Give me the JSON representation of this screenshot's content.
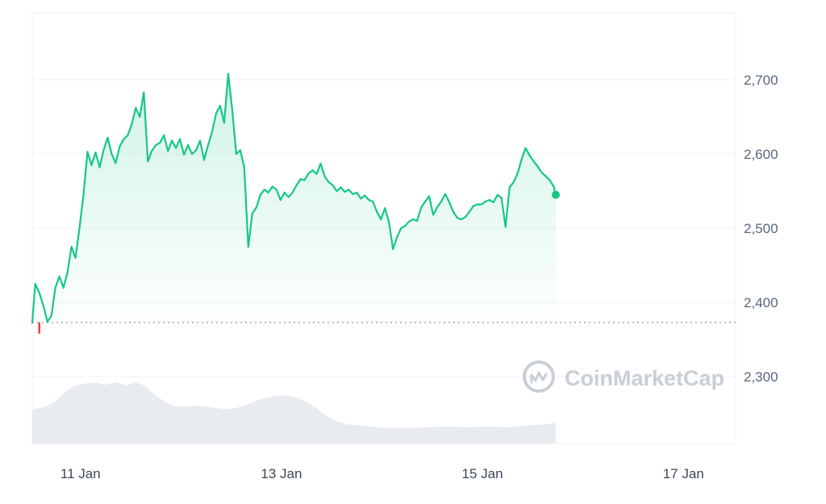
{
  "chart_data": {
    "type": "area",
    "title": "",
    "xlabel": "",
    "ylabel": "",
    "ylim": [
      2210,
      2790
    ],
    "y_ticks": [
      "2,700",
      "2,600",
      "2,500",
      "2,400",
      "2,300"
    ],
    "y_tick_values": [
      2700,
      2600,
      2500,
      2400,
      2300
    ],
    "x_ticks": [
      "11 Jan",
      "13 Jan",
      "15 Jan",
      "17 Jan"
    ],
    "x_tick_values": [
      10.75,
      12.75,
      14.75,
      16.75
    ],
    "x_range": [
      10.27,
      17.27
    ],
    "grid": true,
    "open_price": 2373,
    "colors": {
      "up": "#16c784",
      "down": "#ea3943",
      "fill": "#16c784",
      "volume": "#e8ecf1",
      "grid": "#eff2f5",
      "reference": "#808a9d"
    },
    "series": [
      {
        "values": [
          [
            10.27,
            2373
          ],
          [
            10.3,
            2425
          ],
          [
            10.34,
            2413
          ],
          [
            10.38,
            2396
          ],
          [
            10.42,
            2374
          ],
          [
            10.46,
            2382
          ],
          [
            10.5,
            2420
          ],
          [
            10.54,
            2435
          ],
          [
            10.58,
            2420
          ],
          [
            10.62,
            2440
          ],
          [
            10.66,
            2475
          ],
          [
            10.7,
            2460
          ],
          [
            10.74,
            2500
          ],
          [
            10.78,
            2545
          ],
          [
            10.82,
            2603
          ],
          [
            10.86,
            2585
          ],
          [
            10.9,
            2602
          ],
          [
            10.94,
            2582
          ],
          [
            10.98,
            2605
          ],
          [
            11.02,
            2622
          ],
          [
            11.06,
            2600
          ],
          [
            11.1,
            2588
          ],
          [
            11.14,
            2610
          ],
          [
            11.18,
            2620
          ],
          [
            11.22,
            2625
          ],
          [
            11.26,
            2640
          ],
          [
            11.3,
            2662
          ],
          [
            11.34,
            2650
          ],
          [
            11.38,
            2683
          ],
          [
            11.42,
            2590
          ],
          [
            11.46,
            2604
          ],
          [
            11.5,
            2612
          ],
          [
            11.54,
            2615
          ],
          [
            11.58,
            2625
          ],
          [
            11.62,
            2604
          ],
          [
            11.66,
            2618
          ],
          [
            11.7,
            2608
          ],
          [
            11.74,
            2620
          ],
          [
            11.78,
            2599
          ],
          [
            11.82,
            2612
          ],
          [
            11.86,
            2600
          ],
          [
            11.9,
            2605
          ],
          [
            11.94,
            2618
          ],
          [
            11.98,
            2592
          ],
          [
            12.02,
            2612
          ],
          [
            12.06,
            2630
          ],
          [
            12.1,
            2655
          ],
          [
            12.14,
            2665
          ],
          [
            12.18,
            2642
          ],
          [
            12.22,
            2708
          ],
          [
            12.26,
            2660
          ],
          [
            12.3,
            2600
          ],
          [
            12.34,
            2605
          ],
          [
            12.38,
            2582
          ],
          [
            12.42,
            2475
          ],
          [
            12.46,
            2520
          ],
          [
            12.5,
            2528
          ],
          [
            12.54,
            2545
          ],
          [
            12.58,
            2552
          ],
          [
            12.62,
            2548
          ],
          [
            12.66,
            2556
          ],
          [
            12.7,
            2552
          ],
          [
            12.74,
            2538
          ],
          [
            12.78,
            2548
          ],
          [
            12.82,
            2542
          ],
          [
            12.86,
            2548
          ],
          [
            12.9,
            2558
          ],
          [
            12.94,
            2566
          ],
          [
            12.98,
            2565
          ],
          [
            13.02,
            2574
          ],
          [
            13.06,
            2578
          ],
          [
            13.1,
            2573
          ],
          [
            13.14,
            2587
          ],
          [
            13.18,
            2570
          ],
          [
            13.22,
            2562
          ],
          [
            13.26,
            2558
          ],
          [
            13.3,
            2550
          ],
          [
            13.34,
            2555
          ],
          [
            13.38,
            2549
          ],
          [
            13.42,
            2552
          ],
          [
            13.46,
            2546
          ],
          [
            13.5,
            2548
          ],
          [
            13.54,
            2540
          ],
          [
            13.58,
            2544
          ],
          [
            13.62,
            2538
          ],
          [
            13.66,
            2536
          ],
          [
            13.7,
            2522
          ],
          [
            13.74,
            2512
          ],
          [
            13.78,
            2527
          ],
          [
            13.82,
            2508
          ],
          [
            13.86,
            2472
          ],
          [
            13.9,
            2488
          ],
          [
            13.94,
            2500
          ],
          [
            13.98,
            2503
          ],
          [
            14.02,
            2509
          ],
          [
            14.06,
            2512
          ],
          [
            14.1,
            2510
          ],
          [
            14.14,
            2528
          ],
          [
            14.18,
            2536
          ],
          [
            14.22,
            2543
          ],
          [
            14.26,
            2518
          ],
          [
            14.3,
            2528
          ],
          [
            14.34,
            2536
          ],
          [
            14.38,
            2546
          ],
          [
            14.42,
            2535
          ],
          [
            14.46,
            2522
          ],
          [
            14.5,
            2514
          ],
          [
            14.54,
            2512
          ],
          [
            14.58,
            2515
          ],
          [
            14.62,
            2522
          ],
          [
            14.66,
            2530
          ],
          [
            14.7,
            2532
          ],
          [
            14.74,
            2532
          ],
          [
            14.78,
            2536
          ],
          [
            14.82,
            2538
          ],
          [
            14.86,
            2535
          ],
          [
            14.9,
            2545
          ],
          [
            14.94,
            2541
          ],
          [
            14.98,
            2502
          ],
          [
            15.02,
            2555
          ],
          [
            15.06,
            2562
          ],
          [
            15.1,
            2574
          ],
          [
            15.14,
            2593
          ],
          [
            15.18,
            2608
          ],
          [
            15.22,
            2598
          ],
          [
            15.26,
            2590
          ],
          [
            15.3,
            2583
          ],
          [
            15.34,
            2575
          ],
          [
            15.38,
            2570
          ],
          [
            15.42,
            2565
          ],
          [
            15.46,
            2556
          ],
          [
            15.48,
            2545
          ]
        ]
      }
    ],
    "volume_profile": [
      [
        10.27,
        2256
      ],
      [
        10.4,
        2260
      ],
      [
        10.5,
        2266
      ],
      [
        10.6,
        2280
      ],
      [
        10.7,
        2288
      ],
      [
        10.8,
        2291
      ],
      [
        10.9,
        2292
      ],
      [
        11.0,
        2289
      ],
      [
        11.1,
        2293
      ],
      [
        11.2,
        2288
      ],
      [
        11.3,
        2293
      ],
      [
        11.4,
        2287
      ],
      [
        11.5,
        2275
      ],
      [
        11.6,
        2265
      ],
      [
        11.7,
        2260
      ],
      [
        11.8,
        2260
      ],
      [
        11.9,
        2261
      ],
      [
        12.0,
        2260
      ],
      [
        12.1,
        2258
      ],
      [
        12.2,
        2256
      ],
      [
        12.3,
        2258
      ],
      [
        12.4,
        2262
      ],
      [
        12.5,
        2268
      ],
      [
        12.6,
        2272
      ],
      [
        12.7,
        2274
      ],
      [
        12.8,
        2275
      ],
      [
        12.9,
        2272
      ],
      [
        13.0,
        2266
      ],
      [
        13.1,
        2258
      ],
      [
        13.2,
        2247
      ],
      [
        13.3,
        2240
      ],
      [
        13.4,
        2236
      ],
      [
        13.6,
        2233
      ],
      [
        13.8,
        2231
      ],
      [
        14.0,
        2231
      ],
      [
        14.2,
        2232
      ],
      [
        14.4,
        2233
      ],
      [
        14.6,
        2232
      ],
      [
        14.8,
        2233
      ],
      [
        15.0,
        2232
      ],
      [
        15.2,
        2234
      ],
      [
        15.4,
        2236
      ],
      [
        15.48,
        2238
      ]
    ]
  },
  "watermark": {
    "text": "CoinMarketCap"
  }
}
